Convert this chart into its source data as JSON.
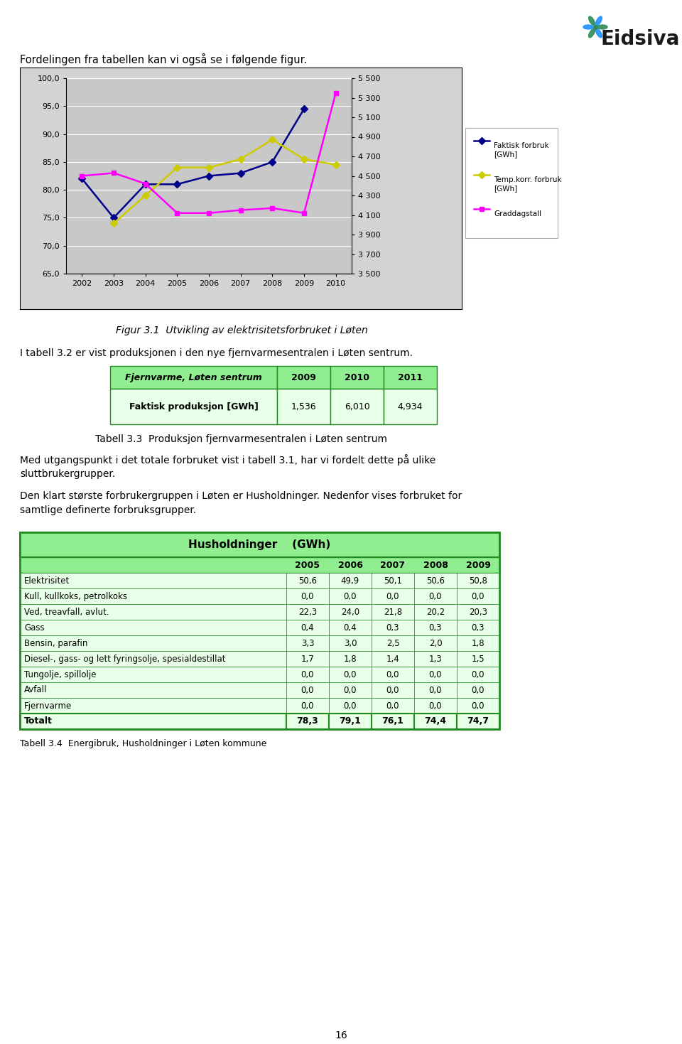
{
  "page_bg": "#ffffff",
  "header_text": "Fordelingen fra tabellen kan vi også se i følgende figur.",
  "chart": {
    "years": [
      2002,
      2003,
      2004,
      2005,
      2006,
      2007,
      2008,
      2009,
      2010
    ],
    "faktisk_forbruk": [
      82.0,
      75.0,
      81.0,
      81.0,
      82.5,
      83.0,
      85.0,
      94.5,
      null
    ],
    "temp_korr_forbruk": [
      null,
      74.0,
      79.0,
      84.0,
      84.0,
      85.5,
      89.0,
      85.5,
      84.5
    ],
    "graddagstall_right": [
      4500,
      4530,
      4420,
      4120,
      4120,
      4150,
      4170,
      4120,
      5350
    ],
    "left_ylim": [
      65.0,
      100.0
    ],
    "right_ylim": [
      3500,
      5500
    ],
    "left_yticks": [
      65.0,
      70.0,
      75.0,
      80.0,
      85.0,
      90.0,
      95.0,
      100.0
    ],
    "right_yticks": [
      3500,
      3700,
      3900,
      4100,
      4300,
      4500,
      4700,
      4900,
      5100,
      5300,
      5500
    ],
    "graddagstall_left": [
      83.5,
      84.0,
      81.5,
      75.5,
      75.5,
      76.5,
      77.0,
      75.5,
      97.0
    ],
    "faktisk_color": "#00008B",
    "temp_color": "#cccc00",
    "grad_color": "#ff00ff",
    "plot_bg": "#c8c8c8",
    "legend_faktisk": "Faktisk forbruk\n[GWh]",
    "legend_temp": "Temp.korr. forbruk\n[GWh]",
    "legend_grad": "Graddagstall"
  },
  "fig31_caption": "Figur 3.1  Utvikling av elektrisitetsforbruket i Løten",
  "para1": "I tabell 3.2 er vist produksjonen i den nye fjernvarmesentralen i Løten sentrum.",
  "table1": {
    "header": [
      "Fjernvarme, Løten sentrum",
      "2009",
      "2010",
      "2011"
    ],
    "row": [
      "Faktisk produksjon [GWh]",
      "1,536",
      "6,010",
      "4,934"
    ],
    "header_bg": "#90ee90",
    "row_bg": "#e8ffe8",
    "border_color": "#228B22"
  },
  "table1_caption": "Tabell 3.3  Produksjon fjernvarmesentralen i Løten sentrum",
  "para2": "Med utgangspunkt i det totale forbruket vist i tabell 3.1, har vi fordelt dette på ulike\nsluttbrukergrupper.",
  "para3": "Den klart største forbrukergruppen i Løten er Husholdninger. Nedenfor vises forbruket for\nsamtlige definerte forbruksgrupper.",
  "table2": {
    "title": "Husholdninger    (GWh)",
    "years": [
      "2005",
      "2006",
      "2007",
      "2008",
      "2009"
    ],
    "rows": [
      [
        "Elektrisitet",
        "50,6",
        "49,9",
        "50,1",
        "50,6",
        "50,8"
      ],
      [
        "Kull, kullkoks, petrolkoks",
        "0,0",
        "0,0",
        "0,0",
        "0,0",
        "0,0"
      ],
      [
        "Ved, treavfall, avlut.",
        "22,3",
        "24,0",
        "21,8",
        "20,2",
        "20,3"
      ],
      [
        "Gass",
        "0,4",
        "0,4",
        "0,3",
        "0,3",
        "0,3"
      ],
      [
        "Bensin, parafin",
        "3,3",
        "3,0",
        "2,5",
        "2,0",
        "1,8"
      ],
      [
        "Diesel-, gass- og lett fyringsolje, spesialdestillat",
        "1,7",
        "1,8",
        "1,4",
        "1,3",
        "1,5"
      ],
      [
        "Tungolje, spillolje",
        "0,0",
        "0,0",
        "0,0",
        "0,0",
        "0,0"
      ],
      [
        "Avfall",
        "0,0",
        "0,0",
        "0,0",
        "0,0",
        "0,0"
      ],
      [
        "Fjernvarme",
        "0,0",
        "0,0",
        "0,0",
        "0,0",
        "0,0"
      ]
    ],
    "total_row": [
      "Totalt",
      "78,3",
      "79,1",
      "76,1",
      "74,4",
      "74,7"
    ],
    "header_bg": "#90ee90",
    "row_bg": "#e8ffe8",
    "border_color": "#228B22"
  },
  "table2_caption": "Tabell 3.4  Energibruk, Husholdninger i Løten kommune",
  "page_number": "16"
}
